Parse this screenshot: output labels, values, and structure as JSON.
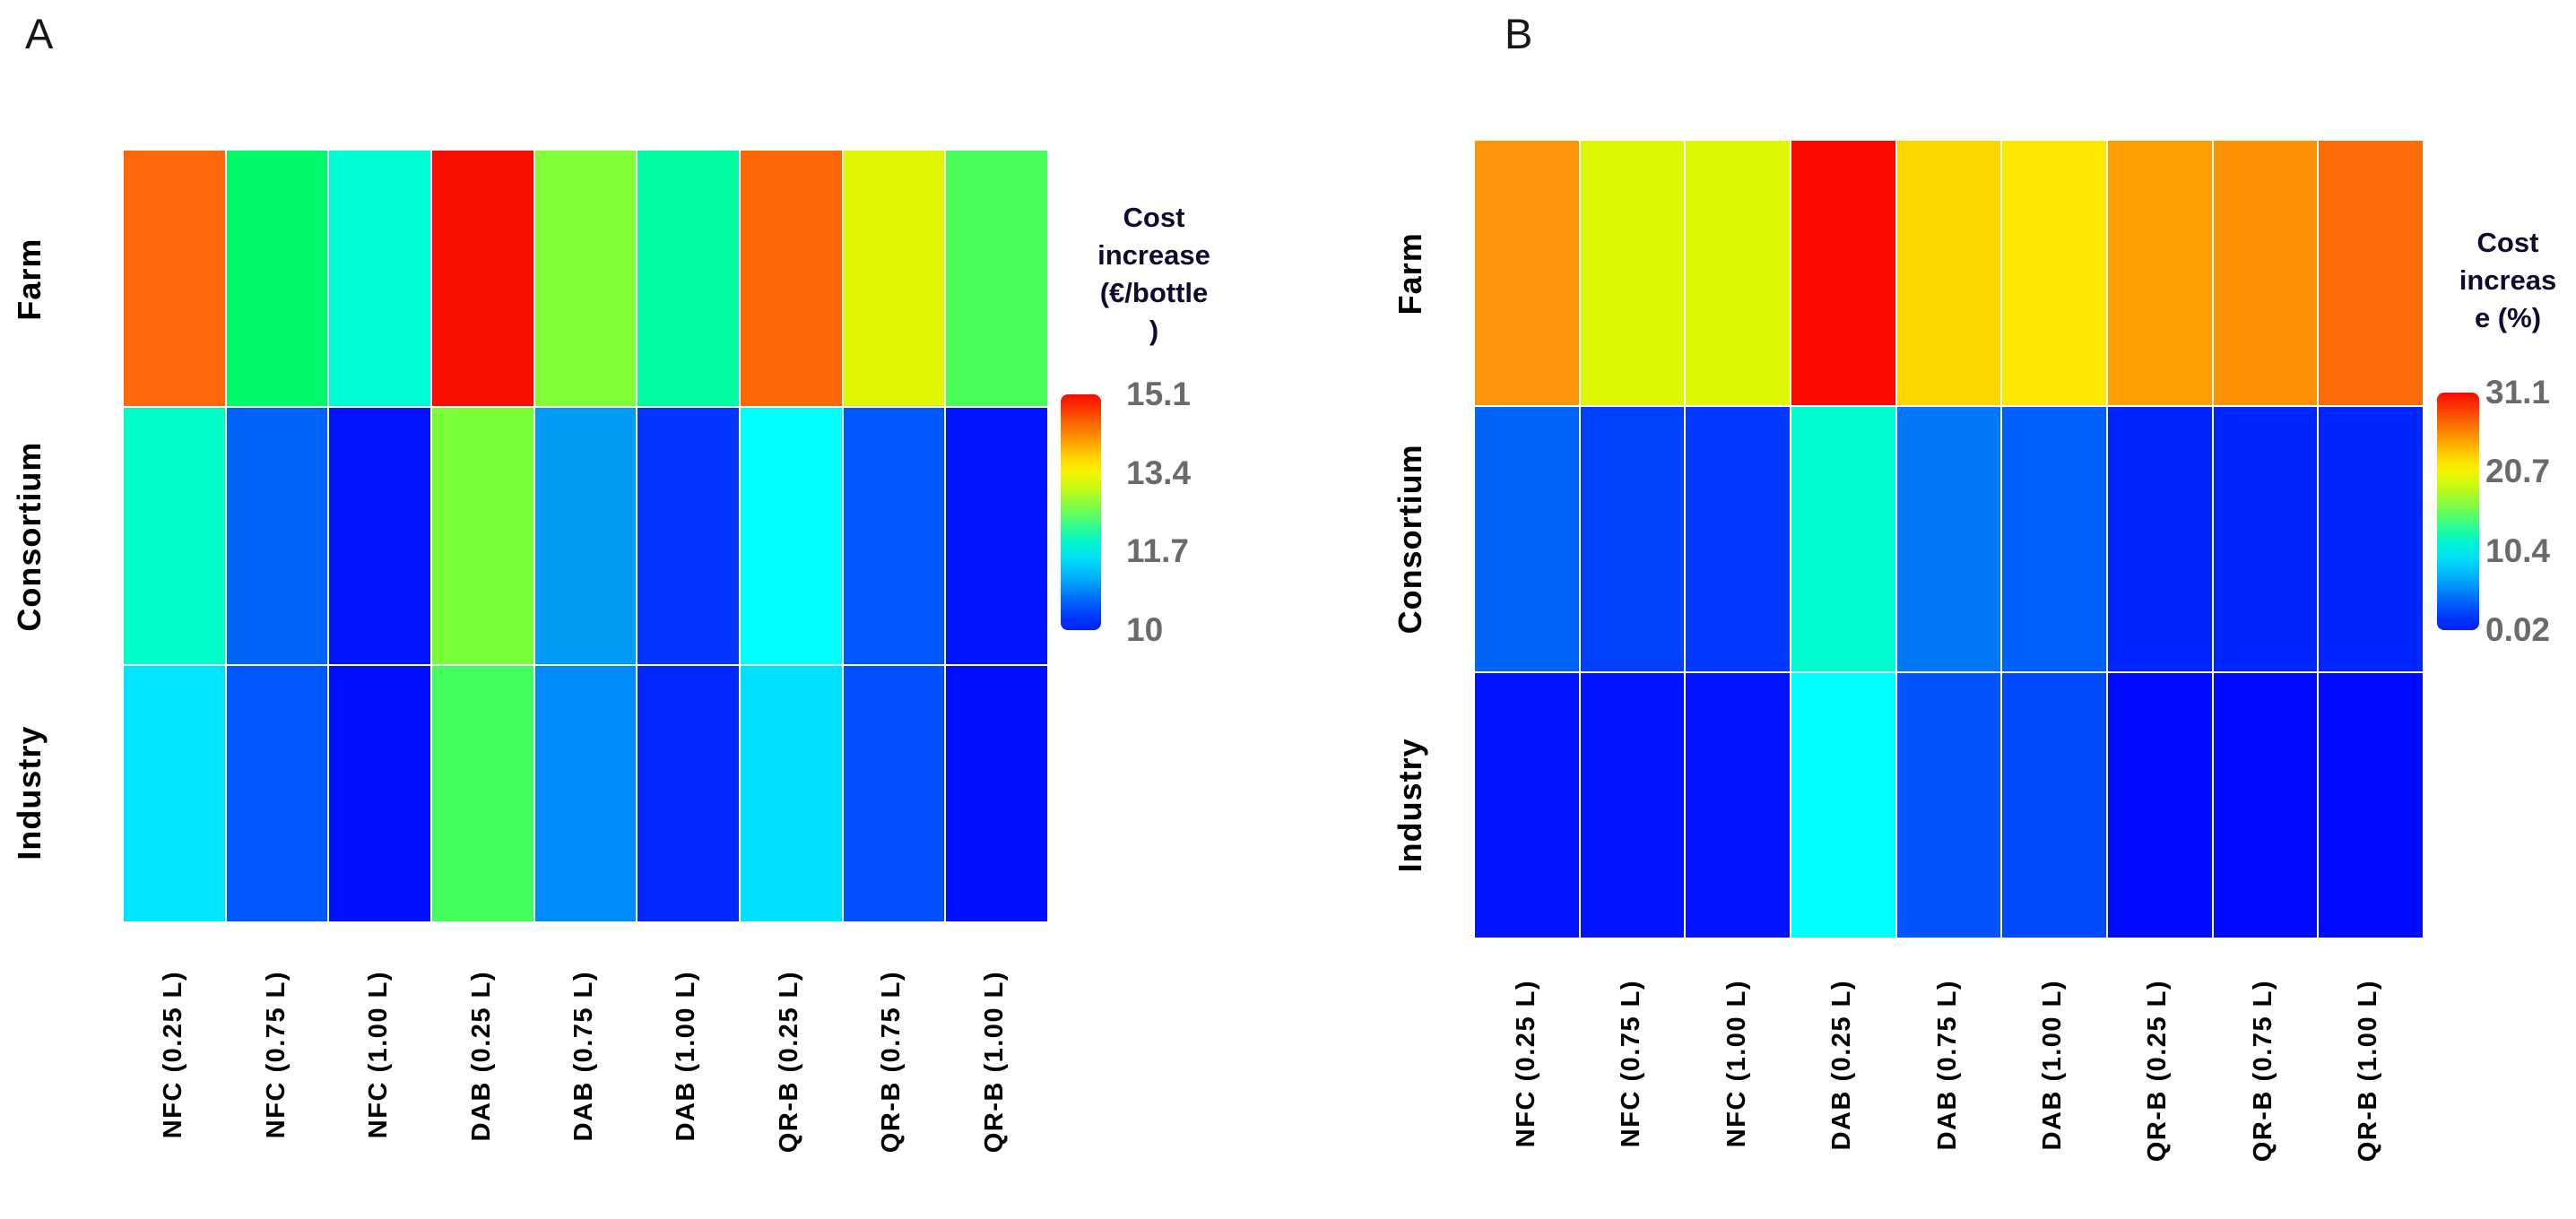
{
  "figure": {
    "type": "dual-heatmap-figure",
    "background": "#ffffff",
    "text_color": "#000000",
    "tick_color": "#6a6a6a",
    "legend_title_color": "#0c0c2e"
  },
  "panels": [
    {
      "label": "A",
      "legend_title_lines": [
        "Cost",
        "increase",
        "(€/bottle",
        ")"
      ],
      "legend_title": "Cost increase (€/bottle)",
      "rows": [
        "Farm",
        "Consortium",
        "Industry"
      ],
      "cols": [
        "NFC (0.25 L)",
        "NFC (0.75 L)",
        "NFC (1.00 L)",
        "DAB (0.25 L)",
        "DAB (0.75 L)",
        "DAB (1.00 L)",
        "QR-B (0.25 L)",
        "QR-B (0.75 L)",
        "QR-B (1.00 L)"
      ],
      "colorbar": {
        "ticks": [
          "15.1",
          "13.4",
          "11.7",
          "10"
        ],
        "min": 10,
        "max": 15.1,
        "colormap": "jet"
      },
      "cells": [
        [
          "#fb6709",
          "#00f96a",
          "#00fcd4",
          "#f90d00",
          "#81fd38",
          "#00fca0",
          "#fb6702",
          "#dff801",
          "#48fb58"
        ],
        [
          "#00fdc8",
          "#0063fa",
          "#0013ff",
          "#79fd37",
          "#009cf6",
          "#0034ff",
          "#00ffff",
          "#0057fb",
          "#0013ff"
        ],
        [
          "#00e5ff",
          "#0057fb",
          "#000fff",
          "#44fd5e",
          "#008cf8",
          "#0129ff",
          "#00e0ff",
          "#0050ff",
          "#000fff"
        ]
      ],
      "values": [
        [
          14.5,
          12.5,
          12.05,
          15.1,
          13.2,
          12.3,
          14.5,
          13.5,
          12.7
        ],
        [
          12.2,
          10.8,
          10.15,
          13.2,
          11.1,
          10.4,
          11.7,
          10.75,
          10.15
        ],
        [
          11.6,
          10.7,
          10.05,
          12.65,
          11.0,
          10.3,
          11.55,
          10.65,
          10.05
        ]
      ]
    },
    {
      "label": "B",
      "legend_title_lines": [
        "Cost",
        "increas",
        "e (%)"
      ],
      "legend_title": "Cost increase (%)",
      "rows": [
        "Farm",
        "Consortium",
        "Industry"
      ],
      "cols": [
        "NFC (0.25 L)",
        "NFC (0.75 L)",
        "NFC (1.00 L)",
        "DAB (0.25 L)",
        "DAB (0.75 L)",
        "DAB (1.00 L)",
        "QR-B (0.25 L)",
        "QR-B (0.75 L)",
        "QR-B (1.00 L)"
      ],
      "colorbar": {
        "ticks": [
          "31.1",
          "20.7",
          "10.4",
          "0.02"
        ],
        "min": 0.02,
        "max": 31.1,
        "colormap": "jet"
      },
      "cells": [
        [
          "#fc9507",
          "#dcf802",
          "#dcf802",
          "#fb0a00",
          "#fdd600",
          "#fde800",
          "#fc9f02",
          "#fc9204",
          "#fb6c06"
        ],
        [
          "#0064f8",
          "#0041fb",
          "#0038fd",
          "#00fbd0",
          "#0078f8",
          "#0060fa",
          "#0026ff",
          "#0026ff",
          "#0026ff"
        ],
        [
          "#0012ff",
          "#0012ff",
          "#0012ff",
          "#00ffff",
          "#0055fb",
          "#004afc",
          "#000aff",
          "#000aff",
          "#000aff"
        ]
      ],
      "values": [
        [
          26.0,
          21.5,
          21.5,
          31.1,
          23.5,
          22.7,
          25.5,
          26.0,
          27.5
        ],
        [
          7.5,
          6.0,
          5.5,
          12.5,
          8.2,
          7.3,
          4.5,
          4.5,
          4.5
        ],
        [
          2.5,
          2.5,
          2.5,
          10.5,
          6.5,
          6.0,
          2.0,
          2.0,
          2.0
        ]
      ]
    }
  ],
  "chart_data": [
    {
      "type": "heatmap",
      "title": "Cost increase (€/bottle)",
      "rows": [
        "Farm",
        "Consortium",
        "Industry"
      ],
      "columns": [
        "NFC (0.25 L)",
        "NFC (0.75 L)",
        "NFC (1.00 L)",
        "DAB (0.25 L)",
        "DAB (0.75 L)",
        "DAB (1.00 L)",
        "QR-B (0.25 L)",
        "QR-B (0.75 L)",
        "QR-B (1.00 L)"
      ],
      "values": [
        [
          14.5,
          12.5,
          12.05,
          15.1,
          13.2,
          12.3,
          14.5,
          13.5,
          12.7
        ],
        [
          12.2,
          10.8,
          10.15,
          13.2,
          11.1,
          10.4,
          11.7,
          10.75,
          10.15
        ],
        [
          11.6,
          10.7,
          10.05,
          12.65,
          11.0,
          10.3,
          11.55,
          10.65,
          10.05
        ]
      ],
      "scale": {
        "min": 10,
        "max": 15.1,
        "colormap": "jet",
        "ticks": [
          15.1,
          13.4,
          11.7,
          10
        ]
      },
      "legend_position": "right",
      "grid": false
    },
    {
      "type": "heatmap",
      "title": "Cost increase (%)",
      "rows": [
        "Farm",
        "Consortium",
        "Industry"
      ],
      "columns": [
        "NFC (0.25 L)",
        "NFC (0.75 L)",
        "NFC (1.00 L)",
        "DAB (0.25 L)",
        "DAB (0.75 L)",
        "DAB (1.00 L)",
        "QR-B (0.25 L)",
        "QR-B (0.75 L)",
        "QR-B (1.00 L)"
      ],
      "values": [
        [
          26.0,
          21.5,
          21.5,
          31.1,
          23.5,
          22.7,
          25.5,
          26.0,
          27.5
        ],
        [
          7.5,
          6.0,
          5.5,
          12.5,
          8.2,
          7.3,
          4.5,
          4.5,
          4.5
        ],
        [
          2.5,
          2.5,
          2.5,
          10.5,
          6.5,
          6.0,
          2.0,
          2.0,
          2.0
        ]
      ],
      "scale": {
        "min": 0.02,
        "max": 31.1,
        "colormap": "jet",
        "ticks": [
          31.1,
          20.7,
          10.4,
          0.02
        ]
      },
      "legend_position": "right",
      "grid": false
    }
  ]
}
